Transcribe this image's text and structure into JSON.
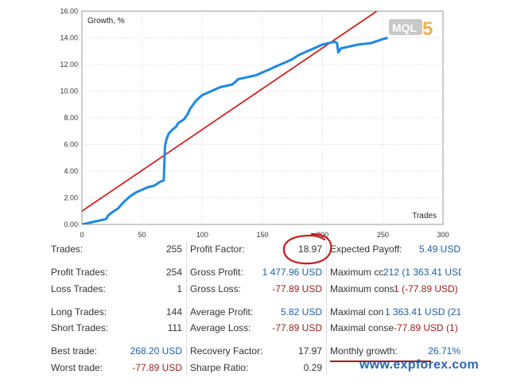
{
  "chart_data": {
    "type": "line",
    "title": "Growth, %",
    "xlabel": "Trades",
    "ylabel": "",
    "xlim": [
      0,
      300
    ],
    "ylim": [
      0,
      16
    ],
    "x_ticks": [
      "0",
      "50",
      "100",
      "150",
      "200",
      "250",
      "300"
    ],
    "y_ticks": [
      "0.00",
      "2.00",
      "4.00",
      "6.00",
      "8.00",
      "10.00",
      "12.00",
      "14.00",
      "16.00"
    ],
    "grid": true,
    "series": [
      {
        "color": "#1e88e5",
        "x": [
          0,
          10,
          15,
          20,
          22,
          25,
          30,
          33,
          35,
          40,
          45,
          50,
          55,
          60,
          65,
          68,
          69,
          70,
          72,
          75,
          78,
          80,
          85,
          88,
          90,
          95,
          100,
          105,
          110,
          115,
          120,
          125,
          130,
          135,
          140,
          145,
          150,
          155,
          160,
          165,
          170,
          175,
          180,
          185,
          190,
          195,
          200,
          205,
          210,
          212,
          213,
          215,
          220,
          225,
          230,
          240,
          250,
          254
        ],
        "y": [
          0.0,
          0.2,
          0.3,
          0.4,
          0.7,
          0.9,
          1.2,
          1.5,
          1.7,
          2.1,
          2.4,
          2.6,
          2.8,
          2.9,
          3.2,
          3.3,
          5.8,
          6.3,
          6.8,
          7.1,
          7.3,
          7.6,
          7.9,
          8.3,
          8.7,
          9.3,
          9.7,
          9.9,
          10.1,
          10.3,
          10.4,
          10.5,
          10.9,
          11.0,
          11.1,
          11.2,
          11.4,
          11.6,
          11.8,
          12.0,
          12.2,
          12.4,
          12.7,
          12.9,
          13.1,
          13.3,
          13.5,
          13.6,
          13.7,
          13.6,
          12.9,
          13.2,
          13.3,
          13.4,
          13.5,
          13.6,
          13.9,
          14.0
        ]
      },
      {
        "color": "#cc2222",
        "x": [
          0,
          245
        ],
        "y": [
          1.0,
          16.0
        ]
      }
    ]
  },
  "watermark": {
    "mql_text": "MQL",
    "mql_number": "5",
    "site": "www.expforex.com"
  },
  "stats": {
    "trades": {
      "label": "Trades:",
      "value": "255"
    },
    "profit_trades": {
      "label": "Profit Trades:",
      "value": "254"
    },
    "loss_trades": {
      "label": "Loss Trades:",
      "value": "1"
    },
    "long_trades": {
      "label": "Long Trades:",
      "value": "144"
    },
    "short_trades": {
      "label": "Short Trades:",
      "value": "111"
    },
    "best_trade": {
      "label": "Best trade:",
      "value": "268.20 USD"
    },
    "worst_trade": {
      "label": "Worst trade:",
      "value": "-77.89 USD"
    },
    "profit_factor": {
      "label": "Profit Factor:",
      "value": "18.97"
    },
    "gross_profit": {
      "label": "Gross Profit:",
      "value": "1 477.96 USD"
    },
    "gross_loss": {
      "label": "Gross Loss:",
      "value": "-77.89 USD"
    },
    "average_profit": {
      "label": "Average Profit:",
      "value": "5.82 USD"
    },
    "average_loss": {
      "label": "Average Loss:",
      "value": "-77.89 USD"
    },
    "recovery_factor": {
      "label": "Recovery Factor:",
      "value": "17.97"
    },
    "sharpe_ratio": {
      "label": "Sharpe Ratio:",
      "value": "0.29"
    },
    "expected_payoff": {
      "label": "Expected Payoff:",
      "value": "5.49 USD"
    },
    "max_consec_wins": {
      "label": "Maximum cc",
      "value": "212 (1 363.41 USD"
    },
    "max_consec_losses": {
      "label": "Maximum cons",
      "value": "1 (-77.89 USD)"
    },
    "maximal_consec_profit": {
      "label": "Maximal con",
      "value": "1 363.41 USD (21"
    },
    "maximal_consec_loss": {
      "label": "Maximal conse",
      "value": "-77.89 USD (1)"
    },
    "monthly_growth": {
      "label": "Monthly growth:",
      "value": "26.71%"
    }
  },
  "colors": {
    "value_blue": "#1f5fa6",
    "value_red": "#9b1c1c",
    "growth_line": "#1e88e5",
    "trend_line": "#cc2222",
    "grid": "#d8d8d8"
  }
}
